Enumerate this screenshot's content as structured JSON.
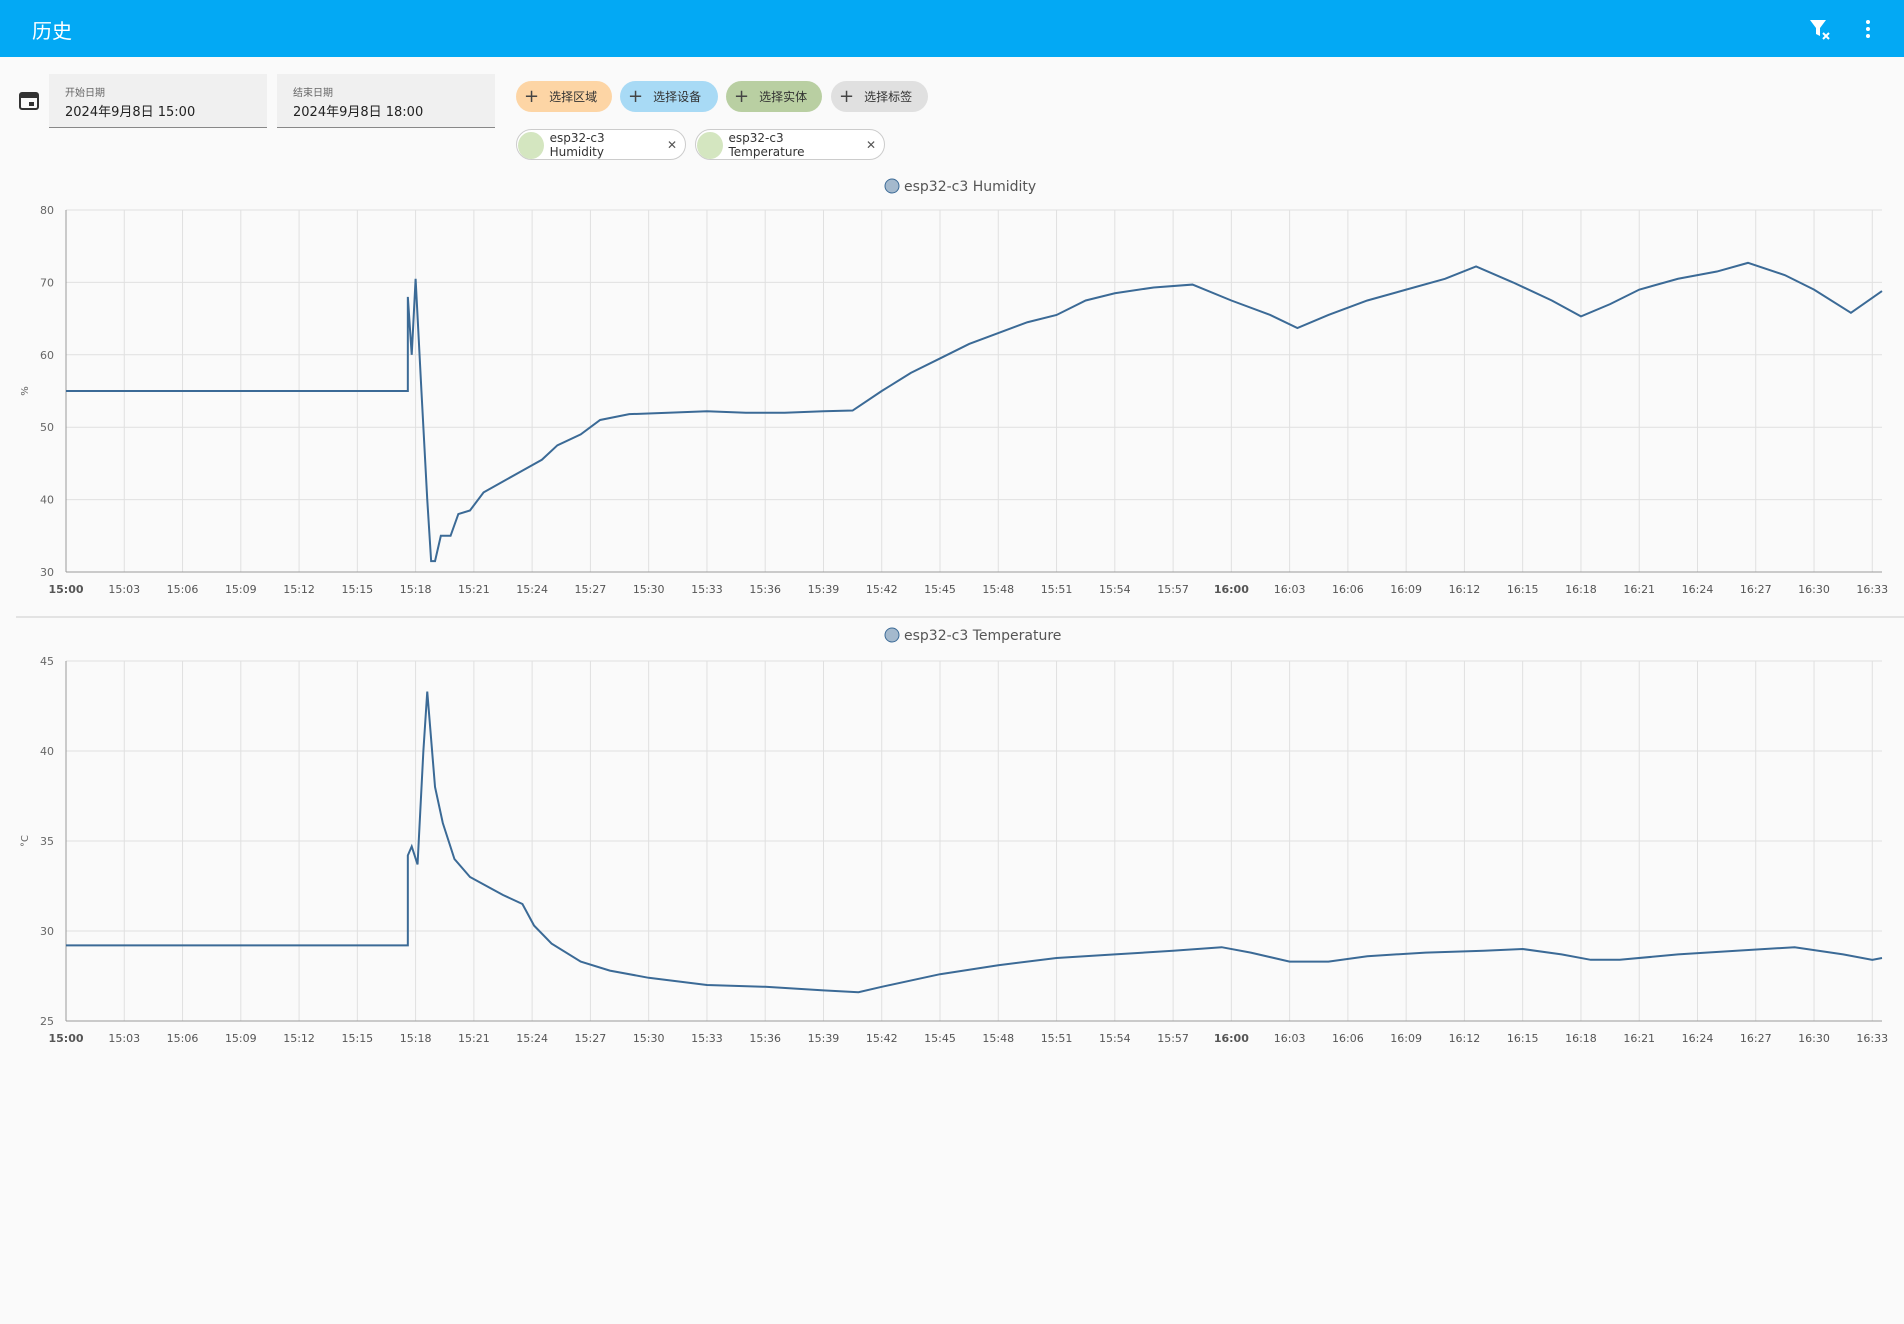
{
  "header": {
    "title": "历史"
  },
  "date_range": {
    "start": {
      "label": "开始日期",
      "value": "2024年9月8日 15:00"
    },
    "end": {
      "label": "结束日期",
      "value": "2024年9月8日 18:00"
    }
  },
  "target_pickers": [
    "选择区域",
    "选择设备",
    "选择实体",
    "选择标签"
  ],
  "selected_entities": [
    "esp32-c3 Humidity",
    "esp32-c3 Temperature"
  ],
  "chart_data": [
    {
      "type": "line",
      "ylabel": "%",
      "xlim": [
        0,
        93.5
      ],
      "ylim": [
        30,
        80
      ],
      "yticks": [
        30,
        40,
        50,
        60,
        70,
        80
      ],
      "grid": true,
      "xticks": [
        {
          "value": 0,
          "label": "15:00"
        },
        {
          "value": 3,
          "label": "15:03"
        },
        {
          "value": 6,
          "label": "15:06"
        },
        {
          "value": 9,
          "label": "15:09"
        },
        {
          "value": 12,
          "label": "15:12"
        },
        {
          "value": 15,
          "label": "15:15"
        },
        {
          "value": 18,
          "label": "15:18"
        },
        {
          "value": 21,
          "label": "15:21"
        },
        {
          "value": 24,
          "label": "15:24"
        },
        {
          "value": 27,
          "label": "15:27"
        },
        {
          "value": 30,
          "label": "15:30"
        },
        {
          "value": 33,
          "label": "15:33"
        },
        {
          "value": 36,
          "label": "15:36"
        },
        {
          "value": 39,
          "label": "15:39"
        },
        {
          "value": 42,
          "label": "15:42"
        },
        {
          "value": 45,
          "label": "15:45"
        },
        {
          "value": 48,
          "label": "15:48"
        },
        {
          "value": 51,
          "label": "15:51"
        },
        {
          "value": 54,
          "label": "15:54"
        },
        {
          "value": 57,
          "label": "15:57"
        },
        {
          "value": 60,
          "label": "16:00"
        },
        {
          "value": 63,
          "label": "16:03"
        },
        {
          "value": 66,
          "label": "16:06"
        },
        {
          "value": 69,
          "label": "16:09"
        },
        {
          "value": 72,
          "label": "16:12"
        },
        {
          "value": 75,
          "label": "16:15"
        },
        {
          "value": 78,
          "label": "16:18"
        },
        {
          "value": 81,
          "label": "16:21"
        },
        {
          "value": 84,
          "label": "16:24"
        },
        {
          "value": 87,
          "label": "16:27"
        },
        {
          "value": 90,
          "label": "16:30"
        },
        {
          "value": 93,
          "label": "16:33"
        }
      ],
      "series": [
        {
          "name": "esp32-c3 Humidity",
          "color": "#3b6a96",
          "x": [
            0,
            17.6,
            17.6,
            17.8,
            18.0,
            18.3,
            18.6,
            18.8,
            19.0,
            19.3,
            19.8,
            20.2,
            20.8,
            21.5,
            22.5,
            23.5,
            24.5,
            25.3,
            26.5,
            27.5,
            29,
            31,
            33,
            35,
            37,
            39,
            40.5,
            42,
            43.5,
            45,
            46.5,
            48,
            49.5,
            51,
            52.5,
            54,
            56,
            58,
            60,
            62,
            63.4,
            65,
            67,
            69,
            71,
            72.6,
            74.5,
            76.5,
            78,
            79.5,
            81,
            83,
            85,
            86.6,
            88.5,
            90,
            91.9,
            93.5
          ],
          "values": [
            55,
            55,
            68,
            60,
            70.5,
            55,
            40,
            31.5,
            31.5,
            35,
            35,
            38,
            38.5,
            41,
            42.5,
            44,
            45.5,
            47.5,
            49,
            51,
            51.8,
            52,
            52.2,
            52,
            52,
            52.2,
            52.3,
            55,
            57.5,
            59.5,
            61.5,
            63,
            64.5,
            65.5,
            67.5,
            68.5,
            69.3,
            69.7,
            67.5,
            65.5,
            63.7,
            65.5,
            67.5,
            69,
            70.5,
            72.2,
            70,
            67.5,
            65.3,
            67,
            69,
            70.5,
            71.5,
            72.7,
            71,
            69,
            65.8,
            68.8
          ]
        }
      ]
    },
    {
      "type": "line",
      "ylabel": "°C",
      "xlim": [
        0,
        93.5
      ],
      "ylim": [
        25,
        45
      ],
      "yticks": [
        25,
        30,
        35,
        40,
        45
      ],
      "grid": true,
      "xticks": [
        {
          "value": 0,
          "label": "15:00"
        },
        {
          "value": 3,
          "label": "15:03"
        },
        {
          "value": 6,
          "label": "15:06"
        },
        {
          "value": 9,
          "label": "15:09"
        },
        {
          "value": 12,
          "label": "15:12"
        },
        {
          "value": 15,
          "label": "15:15"
        },
        {
          "value": 18,
          "label": "15:18"
        },
        {
          "value": 21,
          "label": "15:21"
        },
        {
          "value": 24,
          "label": "15:24"
        },
        {
          "value": 27,
          "label": "15:27"
        },
        {
          "value": 30,
          "label": "15:30"
        },
        {
          "value": 33,
          "label": "15:33"
        },
        {
          "value": 36,
          "label": "15:36"
        },
        {
          "value": 39,
          "label": "15:39"
        },
        {
          "value": 42,
          "label": "15:42"
        },
        {
          "value": 45,
          "label": "15:45"
        },
        {
          "value": 48,
          "label": "15:48"
        },
        {
          "value": 51,
          "label": "15:51"
        },
        {
          "value": 54,
          "label": "15:54"
        },
        {
          "value": 57,
          "label": "15:57"
        },
        {
          "value": 60,
          "label": "16:00"
        },
        {
          "value": 63,
          "label": "16:03"
        },
        {
          "value": 66,
          "label": "16:06"
        },
        {
          "value": 69,
          "label": "16:09"
        },
        {
          "value": 72,
          "label": "16:12"
        },
        {
          "value": 75,
          "label": "16:15"
        },
        {
          "value": 78,
          "label": "16:18"
        },
        {
          "value": 81,
          "label": "16:21"
        },
        {
          "value": 84,
          "label": "16:24"
        },
        {
          "value": 87,
          "label": "16:27"
        },
        {
          "value": 90,
          "label": "16:30"
        },
        {
          "value": 93,
          "label": "16:33"
        }
      ],
      "series": [
        {
          "name": "esp32-c3 Temperature",
          "color": "#3b6a96",
          "x": [
            0,
            17.6,
            17.6,
            17.8,
            18.1,
            18.4,
            18.6,
            19.0,
            19.4,
            20.0,
            20.8,
            22.5,
            23.5,
            24.1,
            25,
            26.5,
            28,
            30,
            33,
            36,
            39,
            40.8,
            42,
            45,
            48,
            51,
            54,
            57,
            59.5,
            61,
            63,
            65,
            67,
            70,
            73,
            75,
            77,
            78.5,
            80,
            83,
            86,
            89,
            91.5,
            93,
            93.5
          ],
          "values": [
            29.2,
            29.2,
            34.2,
            34.7,
            33.7,
            40,
            43.3,
            38,
            36,
            34,
            33,
            32,
            31.5,
            30.3,
            29.3,
            28.3,
            27.8,
            27.4,
            27,
            26.9,
            26.7,
            26.6,
            26.9,
            27.6,
            28.1,
            28.5,
            28.7,
            28.9,
            29.1,
            28.8,
            28.3,
            28.3,
            28.6,
            28.8,
            28.9,
            29,
            28.7,
            28.4,
            28.4,
            28.7,
            28.9,
            29.1,
            28.7,
            28.4,
            28.5
          ]
        }
      ]
    }
  ]
}
